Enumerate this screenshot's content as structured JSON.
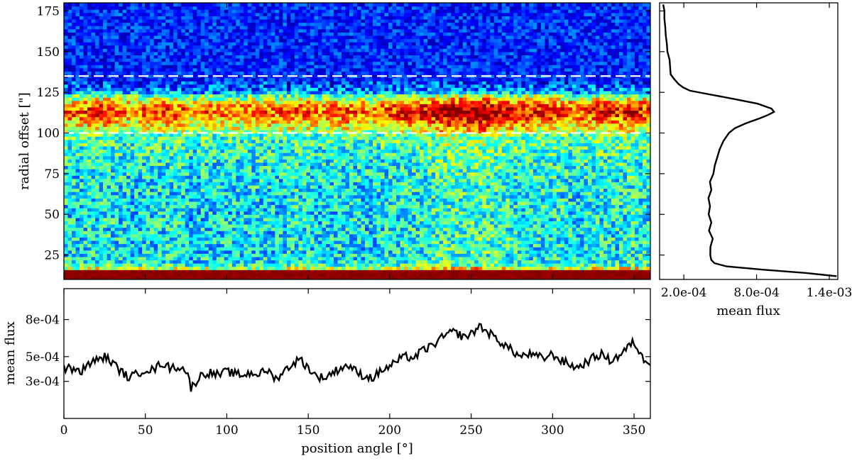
{
  "chart_data": [
    {
      "type": "heatmap",
      "name": "radial-profile-map",
      "xlabel": "",
      "ylabel": "radial offset [\"]",
      "xlim": [
        0,
        360
      ],
      "ylim": [
        10,
        180
      ],
      "x_ticks": [
        0,
        50,
        100,
        150,
        200,
        250,
        300,
        350
      ],
      "y_ticks": [
        25,
        50,
        75,
        100,
        125,
        150,
        175
      ],
      "y_tick_labels": [
        "25",
        "50",
        "75",
        "100",
        "125",
        "150",
        "175"
      ],
      "colormap": "jet",
      "grid": false,
      "dashed_lines_y": [
        100,
        135
      ],
      "dashed_line_color": "#ffffff",
      "bands": [
        {
          "description": "inner saturated core",
          "y_from": 10,
          "y_to": 17,
          "level": 1.0
        },
        {
          "description": "bright ring",
          "y_from": 100,
          "y_to": 127,
          "peak_y": 115,
          "level": 0.75
        },
        {
          "description": "diffuse halo",
          "y_from": 17,
          "y_to": 100,
          "level": 0.35
        },
        {
          "description": "background",
          "y_from": 135,
          "y_to": 180,
          "level": 0.08
        }
      ]
    },
    {
      "type": "line",
      "name": "radial-mean-profile",
      "xlabel": "mean flux",
      "ylabel": "",
      "xlim": [
        0.0,
        0.00147
      ],
      "ylim": [
        10,
        180
      ],
      "x_ticks": [
        0.0002,
        0.0008,
        0.0014
      ],
      "x_tick_labels": [
        "2.0e-04",
        "8.0e-04",
        "1.4e-03"
      ],
      "y_ticks": [
        25,
        50,
        75,
        100,
        125,
        150,
        175
      ],
      "profile": {
        "radius": [
          12,
          14,
          16,
          18,
          20,
          22,
          25,
          30,
          35,
          40,
          45,
          50,
          55,
          60,
          65,
          70,
          75,
          80,
          85,
          90,
          95,
          100,
          103,
          106,
          109,
          111,
          113,
          115,
          118,
          121,
          124,
          126,
          128,
          130,
          133,
          136,
          140,
          145,
          150,
          155,
          160,
          165,
          170,
          175,
          179
        ],
        "flux": [
          0.00146,
          0.0012,
          0.00085,
          0.00055,
          0.00046,
          0.00043,
          0.00042,
          0.00041,
          0.00043,
          0.00041,
          0.00042,
          0.0004,
          0.00042,
          0.00041,
          0.00043,
          0.00042,
          0.00044,
          0.00045,
          0.00047,
          0.00049,
          0.00052,
          0.00057,
          0.00063,
          0.00072,
          0.00082,
          0.0009,
          0.00094,
          0.00092,
          0.0008,
          0.0006,
          0.0004,
          0.00026,
          0.0002,
          0.00016,
          0.00012,
          0.0001,
          9e-05,
          8e-05,
          7e-05,
          6e-05,
          5e-05,
          5e-05,
          4e-05,
          4e-05,
          3e-05
        ]
      }
    },
    {
      "type": "line",
      "name": "angular-mean-profile",
      "xlabel": "position angle [°]",
      "ylabel": "mean flux",
      "xlim": [
        0,
        360
      ],
      "ylim": [
        0.0,
        0.00105
      ],
      "x_ticks": [
        0,
        50,
        100,
        150,
        200,
        250,
        300,
        350
      ],
      "x_tick_labels": [
        "0",
        "50",
        "100",
        "150",
        "200",
        "250",
        "300",
        "350"
      ],
      "y_ticks": [
        0.0003,
        0.0005,
        0.0008
      ],
      "y_tick_labels": [
        "3e-04",
        "5e-04",
        "8e-04"
      ],
      "profile": {
        "angle": [
          0,
          5,
          10,
          15,
          20,
          25,
          30,
          35,
          40,
          45,
          50,
          55,
          60,
          65,
          70,
          75,
          78,
          80,
          85,
          90,
          95,
          100,
          105,
          110,
          115,
          120,
          125,
          130,
          135,
          140,
          145,
          150,
          155,
          160,
          165,
          170,
          175,
          180,
          185,
          190,
          195,
          200,
          205,
          210,
          215,
          220,
          225,
          230,
          235,
          240,
          245,
          250,
          255,
          260,
          265,
          270,
          275,
          280,
          285,
          290,
          295,
          300,
          305,
          310,
          315,
          320,
          325,
          330,
          335,
          340,
          345,
          350,
          355,
          360
        ],
        "flux": [
          0.00041,
          0.0004,
          0.00037,
          0.00044,
          0.00047,
          0.0005,
          0.00045,
          0.00038,
          0.00033,
          0.00036,
          0.0004,
          0.00039,
          0.00045,
          0.00041,
          0.00042,
          0.00039,
          0.00025,
          0.00028,
          0.00036,
          0.00037,
          0.00035,
          0.00038,
          0.00036,
          0.00035,
          0.00037,
          0.00036,
          0.00039,
          0.00032,
          0.00038,
          0.00044,
          0.00048,
          0.00041,
          0.00034,
          0.00033,
          0.00037,
          0.00041,
          0.00043,
          0.00037,
          0.00034,
          0.00033,
          0.00039,
          0.00042,
          0.00047,
          0.0005,
          0.00049,
          0.00055,
          0.00058,
          0.00063,
          0.00068,
          0.0007,
          0.00066,
          0.00068,
          0.00075,
          0.0007,
          0.00065,
          0.0006,
          0.00055,
          0.0005,
          0.00052,
          0.0005,
          0.00049,
          0.00052,
          0.00047,
          0.00044,
          0.00041,
          0.00045,
          0.00049,
          0.00052,
          0.00047,
          0.0005,
          0.00056,
          0.00062,
          0.00049,
          0.00046
        ]
      }
    }
  ]
}
